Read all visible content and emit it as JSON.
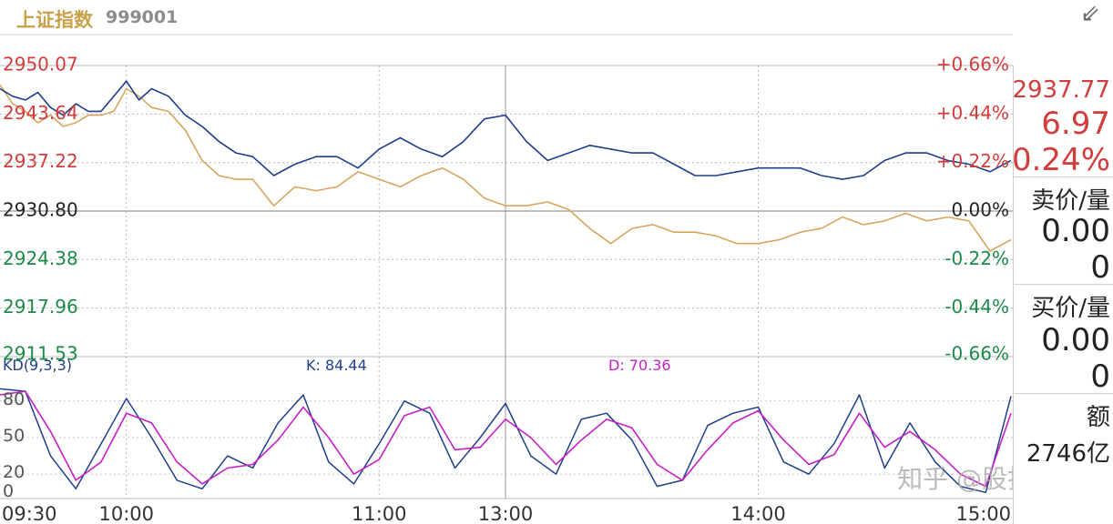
{
  "header": {
    "title": "上证指数",
    "code": "999001",
    "collapse_icon": "collapse-arrows-icon"
  },
  "side_panel": {
    "price": "2937.77",
    "change": "6.97",
    "change_pct": "0.24%",
    "sell_label": "卖价/量",
    "sell_price": "0.00",
    "sell_volume": "0",
    "buy_label": "买价/量",
    "buy_price": "0.00",
    "buy_volume": "0",
    "amount_label": "额",
    "amount_value": "2746亿"
  },
  "watermark": "知乎 @股指乐园",
  "colors": {
    "up": "#d23c3c",
    "down": "#1e8a4a",
    "price_line": "#1f3f8a",
    "avg_line": "#d7a55f",
    "k_line": "#1f3f8a",
    "d_line": "#c71fc7"
  },
  "chart_data": [
    {
      "type": "line",
      "title": "",
      "base": 2930.8,
      "ylim": [
        2911.53,
        2950.07
      ],
      "y_ticks_left": [
        {
          "value": 2950.07,
          "label": "2950.07",
          "tone": "up"
        },
        {
          "value": 2943.64,
          "label": "2943.64",
          "tone": "up"
        },
        {
          "value": 2937.22,
          "label": "2937.22",
          "tone": "up"
        },
        {
          "value": 2930.8,
          "label": "2930.80",
          "tone": "flat"
        },
        {
          "value": 2924.38,
          "label": "2924.38",
          "tone": "down"
        },
        {
          "value": 2917.96,
          "label": "2917.96",
          "tone": "down"
        },
        {
          "value": 2911.53,
          "label": "2911.53",
          "tone": "down"
        }
      ],
      "y_ticks_right": [
        {
          "value": 2950.07,
          "label": "+0.66%",
          "tone": "up"
        },
        {
          "value": 2943.64,
          "label": "+0.44%",
          "tone": "up"
        },
        {
          "value": 2937.22,
          "label": "+0.22%",
          "tone": "up"
        },
        {
          "value": 2930.8,
          "label": "0.00%",
          "tone": "flat"
        },
        {
          "value": 2924.38,
          "label": "-0.22%",
          "tone": "down"
        },
        {
          "value": 2917.96,
          "label": "-0.44%",
          "tone": "down"
        },
        {
          "value": 2911.53,
          "label": "-0.66%",
          "tone": "down"
        }
      ],
      "x_labels": [
        "09:30",
        "10:00",
        "11:00",
        "13:00",
        "14:00",
        "15:00"
      ],
      "grid": true,
      "series": [
        {
          "name": "",
          "x": [
            0,
            3,
            6,
            9,
            12,
            15,
            18,
            21,
            24,
            27,
            30,
            33,
            36,
            40,
            44,
            48,
            52,
            56,
            60,
            65,
            70,
            75,
            80,
            85,
            90,
            95,
            100,
            105,
            110,
            115,
            120,
            125,
            130,
            135,
            140,
            145,
            150,
            155,
            160,
            165,
            170,
            175,
            180,
            185,
            190,
            195,
            200,
            205,
            210,
            215,
            220,
            225,
            230,
            235,
            240
          ],
          "values": [
            2947.0,
            2946.0,
            2945.5,
            2946.5,
            2944.5,
            2943.5,
            2945.0,
            2944.0,
            2944.0,
            2946.0,
            2948.0,
            2945.5,
            2947.0,
            2946.0,
            2943.5,
            2942.0,
            2940.0,
            2938.5,
            2938.0,
            2935.5,
            2937.0,
            2938.0,
            2938.0,
            2936.5,
            2939.0,
            2940.5,
            2939.0,
            2938.0,
            2940.0,
            2943.0,
            2943.5,
            2940.0,
            2937.5,
            2938.5,
            2939.5,
            2939.0,
            2938.5,
            2938.5,
            2937.0,
            2935.5,
            2935.5,
            2936.0,
            2936.5,
            2936.5,
            2936.5,
            2935.5,
            2935.0,
            2935.5,
            2937.5,
            2938.5,
            2938.5,
            2937.5,
            2937.0,
            2936.0,
            2937.5
          ]
        },
        {
          "name": "",
          "x": [
            0,
            3,
            6,
            9,
            12,
            15,
            18,
            21,
            24,
            27,
            30,
            33,
            36,
            40,
            44,
            48,
            52,
            56,
            60,
            65,
            70,
            75,
            80,
            85,
            90,
            95,
            100,
            105,
            110,
            115,
            120,
            125,
            130,
            135,
            140,
            145,
            150,
            155,
            160,
            165,
            170,
            175,
            180,
            185,
            190,
            195,
            200,
            205,
            210,
            215,
            220,
            225,
            230,
            235,
            240
          ],
          "values": [
            2947.5,
            2945.0,
            2944.0,
            2942.5,
            2943.5,
            2942.0,
            2942.5,
            2943.5,
            2943.5,
            2944.0,
            2947.0,
            2946.0,
            2944.5,
            2944.0,
            2941.5,
            2937.5,
            2935.5,
            2935.0,
            2935.0,
            2931.5,
            2934.0,
            2933.5,
            2934.0,
            2936.0,
            2935.0,
            2934.0,
            2935.5,
            2936.5,
            2935.0,
            2932.5,
            2931.5,
            2931.5,
            2932.0,
            2931.0,
            2928.5,
            2926.5,
            2928.5,
            2929.0,
            2928.0,
            2928.0,
            2927.5,
            2926.5,
            2926.5,
            2927.0,
            2928.0,
            2928.5,
            2930.0,
            2929.0,
            2929.5,
            2930.5,
            2929.5,
            2930.0,
            2929.5,
            2925.5,
            2927.0
          ]
        }
      ]
    },
    {
      "type": "line",
      "title": "KD(9,3,3)",
      "ylim": [
        0,
        100
      ],
      "y_ticks": [
        {
          "value": 80,
          "label": "80"
        },
        {
          "value": 50,
          "label": "50"
        },
        {
          "value": 20,
          "label": "20"
        },
        {
          "value": 0,
          "label": "0"
        }
      ],
      "series": [
        {
          "name": "K: 84.44",
          "x": [
            0,
            6,
            12,
            18,
            24,
            30,
            36,
            42,
            48,
            54,
            60,
            66,
            72,
            78,
            84,
            90,
            96,
            102,
            108,
            114,
            120,
            126,
            132,
            138,
            144,
            150,
            156,
            162,
            168,
            174,
            180,
            186,
            192,
            198,
            204,
            210,
            216,
            222,
            228,
            234,
            240
          ],
          "values": [
            90,
            88,
            35,
            8,
            45,
            82,
            50,
            15,
            8,
            35,
            25,
            62,
            85,
            30,
            12,
            45,
            80,
            70,
            25,
            50,
            78,
            35,
            20,
            65,
            70,
            48,
            10,
            15,
            60,
            70,
            75,
            30,
            20,
            45,
            85,
            25,
            62,
            30,
            10,
            5,
            84
          ]
        },
        {
          "name": "D: 70.36",
          "x": [
            0,
            6,
            12,
            18,
            24,
            30,
            36,
            42,
            48,
            54,
            60,
            66,
            72,
            78,
            84,
            90,
            96,
            102,
            108,
            114,
            120,
            126,
            132,
            138,
            144,
            150,
            156,
            162,
            168,
            174,
            180,
            186,
            192,
            198,
            204,
            210,
            216,
            222,
            228,
            234,
            240
          ],
          "values": [
            85,
            88,
            55,
            15,
            30,
            70,
            62,
            30,
            12,
            25,
            28,
            48,
            75,
            50,
            20,
            32,
            68,
            75,
            40,
            42,
            65,
            50,
            28,
            48,
            65,
            58,
            28,
            15,
            40,
            62,
            72,
            48,
            28,
            36,
            70,
            42,
            55,
            40,
            20,
            10,
            70
          ]
        }
      ]
    }
  ]
}
